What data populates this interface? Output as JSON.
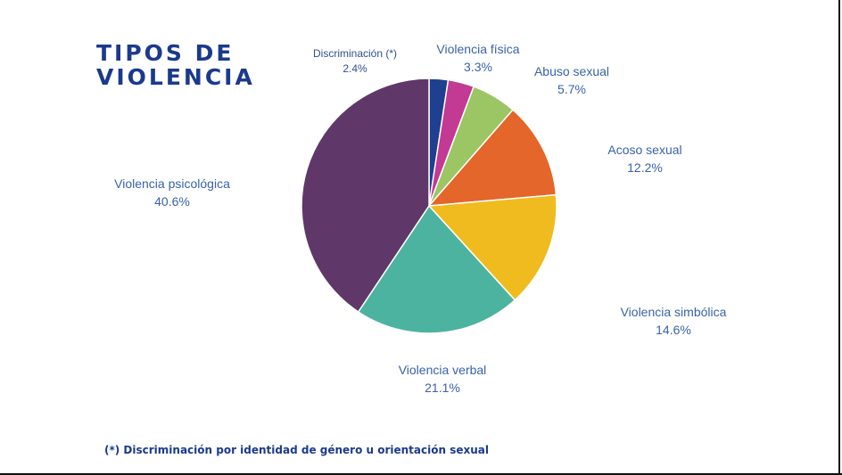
{
  "title": {
    "line1": "TIPOS DE",
    "line2": "VIOLENCIA"
  },
  "footnote": "(*) Discriminación por identidad de género u orientación sexual",
  "chart_data": {
    "type": "pie",
    "title": "TIPOS DE VIOLENCIA",
    "slices": [
      {
        "label": "Discriminación (*)",
        "value": 2.4,
        "display": "2.4%",
        "color": "#1f3f8f"
      },
      {
        "label": "Violencia física",
        "value": 3.3,
        "display": "3.3%",
        "color": "#c23a94"
      },
      {
        "label": "Abuso sexual",
        "value": 5.7,
        "display": "5.7%",
        "color": "#9cc564"
      },
      {
        "label": "Acoso sexual",
        "value": 12.2,
        "display": "12.2%",
        "color": "#e5662a"
      },
      {
        "label": "Violencia simbólica",
        "value": 14.6,
        "display": "14.6%",
        "color": "#f0bb1e"
      },
      {
        "label": "Violencia verbal",
        "value": 21.1,
        "display": "21.1%",
        "color": "#4db3a1"
      },
      {
        "label": "Violencia psicológica",
        "value": 40.6,
        "display": "40.6%",
        "color": "#5f3769"
      }
    ]
  }
}
